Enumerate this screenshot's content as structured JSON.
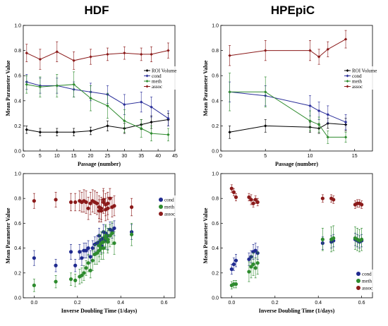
{
  "titles": {
    "left": "HDF",
    "right": "HPEpiC"
  },
  "chart_data": [
    {
      "type": "line",
      "panel": "top-left",
      "xlabel": "Passage (number)",
      "ylabel": "Mean Parameter Value",
      "xlim": [
        0,
        45
      ],
      "ylim": [
        0,
        1.0
      ],
      "xticks": [
        "0",
        "5",
        "10",
        "15",
        "20",
        "25",
        "30",
        "35",
        "40",
        "45"
      ],
      "yticks": [
        "0.0",
        "0.2",
        "0.4",
        "0.6",
        "0.8",
        "1.0"
      ],
      "legend_position": "center-right",
      "series": [
        {
          "name": "ROI Volume",
          "color": "#000000",
          "x": [
            1,
            5,
            10,
            15,
            20,
            25,
            30,
            35,
            38,
            43
          ],
          "y": [
            0.17,
            0.15,
            0.15,
            0.15,
            0.16,
            0.2,
            0.18,
            0.21,
            0.23,
            0.25
          ],
          "err": [
            0.03,
            0.03,
            0.03,
            0.03,
            0.03,
            0.04,
            0.04,
            0.04,
            0.05,
            0.05
          ]
        },
        {
          "name": "cond",
          "color": "#2b2f9a",
          "x": [
            1,
            5,
            10,
            15,
            20,
            25,
            30,
            35,
            38,
            43
          ],
          "y": [
            0.55,
            0.52,
            0.52,
            0.49,
            0.47,
            0.45,
            0.37,
            0.39,
            0.35,
            0.26
          ],
          "err": [
            0.06,
            0.06,
            0.06,
            0.06,
            0.07,
            0.07,
            0.08,
            0.08,
            0.08,
            0.06
          ]
        },
        {
          "name": "meth",
          "color": "#2e8b2e",
          "x": [
            1,
            5,
            10,
            15,
            20,
            25,
            30,
            35,
            38,
            43
          ],
          "y": [
            0.53,
            0.51,
            0.52,
            0.53,
            0.42,
            0.36,
            0.24,
            0.18,
            0.14,
            0.13
          ],
          "err": [
            0.07,
            0.08,
            0.09,
            0.1,
            0.1,
            0.1,
            0.09,
            0.07,
            0.06,
            0.05
          ]
        },
        {
          "name": "assoc",
          "color": "#8b1a1a",
          "x": [
            1,
            5,
            10,
            15,
            20,
            25,
            30,
            35,
            38,
            43
          ],
          "y": [
            0.78,
            0.73,
            0.79,
            0.72,
            0.75,
            0.77,
            0.78,
            0.77,
            0.77,
            0.8
          ],
          "err": [
            0.07,
            0.08,
            0.08,
            0.07,
            0.06,
            0.05,
            0.05,
            0.05,
            0.06,
            0.06
          ]
        }
      ]
    },
    {
      "type": "line",
      "panel": "top-right",
      "xlabel": "Passage (number)",
      "ylabel": "Mean Parameter Value",
      "xlim": [
        0,
        17
      ],
      "ylim": [
        0,
        1.0
      ],
      "xticks": [
        "0",
        "5",
        "10",
        "15"
      ],
      "yticks": [
        "0.0",
        "0.2",
        "0.4",
        "0.6",
        "0.8",
        "1.0"
      ],
      "legend_position": "center-right",
      "series": [
        {
          "name": "ROI Volume",
          "color": "#000000",
          "x": [
            1,
            5,
            10,
            11,
            12,
            14
          ],
          "y": [
            0.15,
            0.2,
            0.19,
            0.18,
            0.22,
            0.21
          ],
          "err": [
            0.05,
            0.05,
            0.04,
            0.04,
            0.04,
            0.05
          ]
        },
        {
          "name": "cond",
          "color": "#2b2f9a",
          "x": [
            1,
            5,
            10,
            11,
            12,
            14
          ],
          "y": [
            0.47,
            0.44,
            0.36,
            0.32,
            0.29,
            0.23
          ],
          "err": [
            0.08,
            0.08,
            0.08,
            0.07,
            0.07,
            0.06
          ]
        },
        {
          "name": "meth",
          "color": "#2e8b2e",
          "x": [
            1,
            5,
            10,
            11,
            12,
            14
          ],
          "y": [
            0.47,
            0.47,
            0.24,
            0.21,
            0.11,
            0.11
          ],
          "err": [
            0.15,
            0.12,
            0.08,
            0.06,
            0.05,
            0.04
          ]
        },
        {
          "name": "assoc",
          "color": "#8b1a1a",
          "x": [
            1,
            5,
            10,
            11,
            12,
            14
          ],
          "y": [
            0.76,
            0.8,
            0.8,
            0.75,
            0.81,
            0.89
          ],
          "err": [
            0.08,
            0.08,
            0.08,
            0.06,
            0.06,
            0.07
          ]
        }
      ]
    },
    {
      "type": "scatter",
      "panel": "bottom-left",
      "xlabel": "Inverse Doubling Time (1/days)",
      "ylabel": "Mean Parameter Value",
      "xlim": [
        -0.05,
        0.65
      ],
      "ylim": [
        0,
        1.0
      ],
      "xticks": [
        "0.0",
        "0.2",
        "0.4",
        "0.6"
      ],
      "yticks": [
        "0.0",
        "0.2",
        "0.4",
        "0.6",
        "0.8",
        "1.0"
      ],
      "legend_position": "top-right",
      "series": [
        {
          "name": "cond",
          "color": "#1f2a8f",
          "x": [
            0.0,
            0.1,
            0.17,
            0.19,
            0.21,
            0.22,
            0.23,
            0.24,
            0.25,
            0.26,
            0.27,
            0.28,
            0.29,
            0.3,
            0.3,
            0.31,
            0.31,
            0.32,
            0.32,
            0.33,
            0.33,
            0.34,
            0.34,
            0.35,
            0.36,
            0.37,
            0.45
          ],
          "y": [
            0.32,
            0.26,
            0.37,
            0.26,
            0.37,
            0.32,
            0.38,
            0.38,
            0.4,
            0.33,
            0.4,
            0.43,
            0.44,
            0.45,
            0.5,
            0.47,
            0.42,
            0.53,
            0.48,
            0.46,
            0.52,
            0.45,
            0.5,
            0.55,
            0.54,
            0.56,
            0.53
          ],
          "err": [
            0.06,
            0.05,
            0.06,
            0.05,
            0.06,
            0.06,
            0.06,
            0.06,
            0.06,
            0.05,
            0.06,
            0.06,
            0.06,
            0.06,
            0.06,
            0.06,
            0.06,
            0.06,
            0.06,
            0.06,
            0.06,
            0.06,
            0.06,
            0.06,
            0.06,
            0.06,
            0.06
          ]
        },
        {
          "name": "meth",
          "color": "#2e8b2e",
          "x": [
            0.0,
            0.1,
            0.17,
            0.19,
            0.21,
            0.22,
            0.23,
            0.24,
            0.25,
            0.26,
            0.27,
            0.28,
            0.29,
            0.3,
            0.3,
            0.31,
            0.31,
            0.32,
            0.32,
            0.33,
            0.33,
            0.34,
            0.34,
            0.35,
            0.36,
            0.37,
            0.45
          ],
          "y": [
            0.1,
            0.13,
            0.15,
            0.14,
            0.17,
            0.18,
            0.2,
            0.24,
            0.28,
            0.22,
            0.3,
            0.35,
            0.36,
            0.38,
            0.42,
            0.4,
            0.44,
            0.45,
            0.4,
            0.48,
            0.5,
            0.45,
            0.47,
            0.5,
            0.52,
            0.44,
            0.51
          ],
          "err": [
            0.05,
            0.05,
            0.05,
            0.05,
            0.06,
            0.06,
            0.06,
            0.06,
            0.07,
            0.06,
            0.08,
            0.08,
            0.09,
            0.09,
            0.09,
            0.09,
            0.09,
            0.09,
            0.09,
            0.09,
            0.09,
            0.09,
            0.09,
            0.09,
            0.09,
            0.09,
            0.09
          ]
        },
        {
          "name": "assoc",
          "color": "#8b1a1a",
          "x": [
            0.0,
            0.1,
            0.17,
            0.19,
            0.21,
            0.22,
            0.23,
            0.24,
            0.25,
            0.26,
            0.27,
            0.28,
            0.29,
            0.3,
            0.3,
            0.31,
            0.31,
            0.32,
            0.32,
            0.33,
            0.33,
            0.34,
            0.34,
            0.35,
            0.36,
            0.37,
            0.45
          ],
          "y": [
            0.78,
            0.79,
            0.77,
            0.77,
            0.78,
            0.77,
            0.78,
            0.77,
            0.72,
            0.76,
            0.78,
            0.77,
            0.76,
            0.7,
            0.73,
            0.72,
            0.7,
            0.77,
            0.79,
            0.71,
            0.75,
            0.72,
            0.76,
            0.8,
            0.73,
            0.74,
            0.73
          ],
          "err": [
            0.06,
            0.06,
            0.07,
            0.07,
            0.08,
            0.08,
            0.09,
            0.09,
            0.09,
            0.09,
            0.09,
            0.09,
            0.09,
            0.09,
            0.09,
            0.09,
            0.09,
            0.09,
            0.09,
            0.09,
            0.09,
            0.09,
            0.09,
            0.08,
            0.08,
            0.08,
            0.07
          ]
        }
      ]
    },
    {
      "type": "scatter",
      "panel": "bottom-right",
      "xlabel": "Inverse Doubling Time (1/days)",
      "ylabel": "Mean Parameter Value",
      "xlim": [
        -0.05,
        0.65
      ],
      "ylim": [
        0,
        1.0
      ],
      "xticks": [
        "0.0",
        "0.2",
        "0.4",
        "0.6"
      ],
      "yticks": [
        "0.0",
        "0.2",
        "0.4",
        "0.6",
        "0.8",
        "1.0"
      ],
      "legend_position": "bottom-right",
      "series": [
        {
          "name": "cond",
          "color": "#1f2a8f",
          "x": [
            0.0,
            0.01,
            0.02,
            0.08,
            0.09,
            0.1,
            0.11,
            0.12,
            0.42,
            0.46,
            0.47,
            0.57,
            0.58,
            0.59,
            0.6
          ],
          "y": [
            0.23,
            0.27,
            0.3,
            0.31,
            0.33,
            0.37,
            0.38,
            0.36,
            0.44,
            0.45,
            0.46,
            0.47,
            0.46,
            0.45,
            0.46
          ],
          "err": [
            0.04,
            0.05,
            0.05,
            0.05,
            0.05,
            0.06,
            0.06,
            0.05,
            0.05,
            0.05,
            0.05,
            0.05,
            0.05,
            0.05,
            0.05
          ]
        },
        {
          "name": "meth",
          "color": "#2e8b2e",
          "x": [
            0.0,
            0.01,
            0.02,
            0.08,
            0.09,
            0.1,
            0.11,
            0.12,
            0.42,
            0.46,
            0.47,
            0.57,
            0.58,
            0.59,
            0.6
          ],
          "y": [
            0.1,
            0.11,
            0.11,
            0.21,
            0.25,
            0.27,
            0.24,
            0.28,
            0.47,
            0.47,
            0.48,
            0.48,
            0.47,
            0.46,
            0.47
          ],
          "err": [
            0.03,
            0.03,
            0.03,
            0.08,
            0.09,
            0.09,
            0.08,
            0.09,
            0.09,
            0.1,
            0.1,
            0.09,
            0.09,
            0.09,
            0.09
          ]
        },
        {
          "name": "assoc",
          "color": "#8b1a1a",
          "x": [
            0.0,
            0.01,
            0.02,
            0.08,
            0.09,
            0.1,
            0.11,
            0.12,
            0.42,
            0.46,
            0.47,
            0.57,
            0.58,
            0.59,
            0.6
          ],
          "y": [
            0.88,
            0.85,
            0.81,
            0.81,
            0.79,
            0.76,
            0.79,
            0.77,
            0.8,
            0.8,
            0.79,
            0.75,
            0.76,
            0.76,
            0.75
          ],
          "err": [
            0.03,
            0.03,
            0.03,
            0.03,
            0.04,
            0.03,
            0.03,
            0.03,
            0.03,
            0.03,
            0.03,
            0.03,
            0.03,
            0.03,
            0.03
          ]
        }
      ]
    }
  ]
}
